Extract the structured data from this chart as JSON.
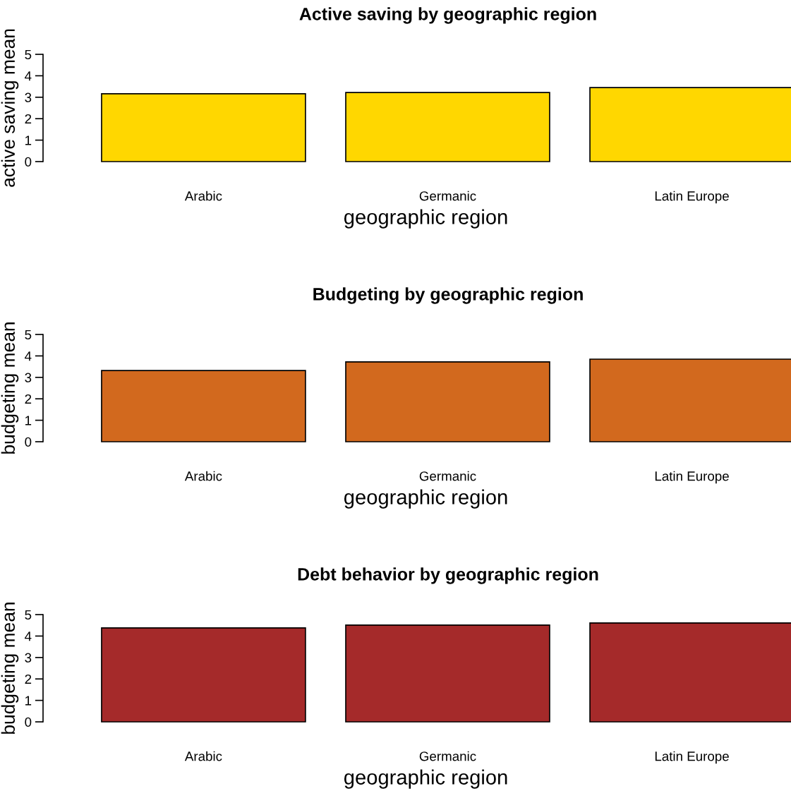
{
  "chart_data": [
    {
      "type": "bar",
      "title": "Active saving by geographic region",
      "xlabel": "geographic region",
      "ylabel": "active saving mean",
      "categories": [
        "Arabic",
        "Germanic",
        "Latin Europe"
      ],
      "values": [
        3.16,
        3.22,
        3.45
      ],
      "color": "#ffd700",
      "ylim": [
        0,
        5
      ],
      "yticks": [
        0,
        1,
        2,
        3,
        4,
        5
      ],
      "grid": false,
      "legend": false
    },
    {
      "type": "bar",
      "title": "Budgeting by geographic region",
      "xlabel": "geographic region",
      "ylabel": "budgeting mean",
      "categories": [
        "Arabic",
        "Germanic",
        "Latin Europe"
      ],
      "values": [
        3.32,
        3.72,
        3.85
      ],
      "color": "#d2691e",
      "ylim": [
        0,
        5
      ],
      "yticks": [
        0,
        1,
        2,
        3,
        4,
        5
      ],
      "grid": false,
      "legend": false
    },
    {
      "type": "bar",
      "title": "Debt behavior by geographic region",
      "xlabel": "geographic region",
      "ylabel": "budgeting mean",
      "categories": [
        "Arabic",
        "Germanic",
        "Latin Europe"
      ],
      "values": [
        4.38,
        4.51,
        4.61
      ],
      "color": "#a52a2a",
      "ylim": [
        0,
        5
      ],
      "yticks": [
        0,
        1,
        2,
        3,
        4,
        5
      ],
      "grid": false,
      "legend": false
    }
  ]
}
